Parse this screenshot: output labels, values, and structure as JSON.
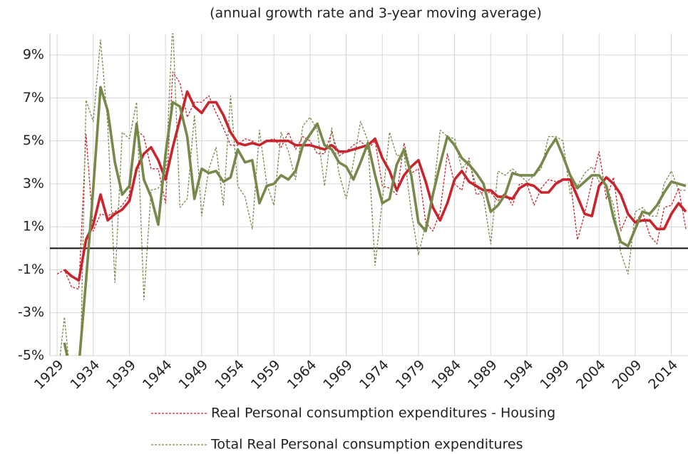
{
  "chart_data": {
    "type": "line",
    "title": "(annual growth rate and 3-year moving average)",
    "x": [
      1929,
      1930,
      1931,
      1932,
      1933,
      1934,
      1935,
      1936,
      1937,
      1938,
      1939,
      1940,
      1941,
      1942,
      1943,
      1944,
      1945,
      1946,
      1947,
      1948,
      1949,
      1950,
      1951,
      1952,
      1953,
      1954,
      1955,
      1956,
      1957,
      1958,
      1959,
      1960,
      1961,
      1962,
      1963,
      1964,
      1965,
      1966,
      1967,
      1968,
      1969,
      1970,
      1971,
      1972,
      1973,
      1974,
      1975,
      1976,
      1977,
      1978,
      1979,
      1980,
      1981,
      1982,
      1983,
      1984,
      1985,
      1986,
      1987,
      1988,
      1989,
      1990,
      1991,
      1992,
      1993,
      1994,
      1995,
      1996,
      1997,
      1998,
      1999,
      2000,
      2001,
      2002,
      2003,
      2004,
      2005,
      2006,
      2007,
      2008,
      2009,
      2010,
      2011,
      2012,
      2013,
      2014,
      2015,
      2016
    ],
    "series": [
      {
        "name": "Real Personal consumption expenditures - Housing",
        "color": "#c8242b",
        "style": "dashed",
        "values": [
          -1.2,
          -1.0,
          -1.8,
          -1.9,
          5.3,
          0.8,
          1.6,
          1.5,
          1.7,
          2.0,
          2.5,
          5.5,
          5.2,
          3.7,
          3.7,
          2.1,
          8.2,
          7.7,
          6.1,
          6.8,
          6.8,
          7.1,
          6.3,
          5.6,
          4.8,
          4.8,
          5.1,
          5.0,
          4.8,
          5.0,
          5.1,
          4.7,
          5.4,
          4.6,
          5.2,
          5.0,
          4.4,
          4.4,
          5.4,
          4.3,
          4.5,
          4.8,
          5.0,
          4.6,
          5.0,
          2.9,
          2.8,
          2.5,
          4.9,
          3.5,
          3.7,
          1.2,
          0.8,
          1.7,
          4.4,
          3.0,
          2.7,
          4.2,
          2.5,
          2.6,
          2.6,
          2.2,
          2.6,
          2.0,
          3.0,
          3.0,
          2.0,
          2.8,
          3.2,
          3.1,
          3.2,
          3.2,
          0.4,
          1.6,
          3.1,
          4.5,
          2.3,
          3.3,
          0.8,
          1.6,
          1.2,
          1.7,
          0.6,
          0.2,
          1.9,
          2.0,
          2.8,
          0.9
        ]
      },
      {
        "name": "Total Real Personal consumption expenditures",
        "color": "#76894a",
        "style": "dashed",
        "values": [
          -6.3,
          -3.2,
          -6.5,
          -9.0,
          6.9,
          5.9,
          9.7,
          5.8,
          -1.6,
          5.4,
          5.1,
          6.8,
          -2.4,
          2.7,
          2.8,
          3.3,
          10.5,
          1.9,
          2.3,
          6.2,
          1.5,
          3.7,
          4.7,
          2.0,
          7.1,
          2.9,
          2.4,
          0.9,
          5.5,
          3.0,
          2.0,
          5.4,
          4.5,
          3.2,
          5.7,
          6.1,
          5.5,
          2.9,
          5.6,
          3.5,
          2.3,
          4.0,
          5.9,
          5.0,
          -0.8,
          2.2,
          5.4,
          4.3,
          4.4,
          1.7,
          -0.3,
          1.1,
          2.3,
          5.5,
          5.2,
          5.1,
          3.7,
          4.1,
          2.9,
          2.4,
          0.2,
          3.6,
          3.4,
          3.7,
          3.4,
          3.1,
          3.4,
          3.7,
          5.2,
          5.2,
          5.0,
          2.5,
          2.9,
          3.5,
          3.8,
          3.1,
          2.9,
          2.0,
          -0.2,
          -1.2,
          1.7,
          1.9,
          1.5,
          1.5,
          3.0,
          3.6,
          2.7,
          2.7
        ]
      },
      {
        "color": "#c8242b",
        "style": "solid",
        "values": [
          null,
          -1.0,
          -1.3,
          -1.5,
          0.4,
          1.1,
          2.5,
          1.3,
          1.6,
          1.8,
          2.2,
          3.7,
          4.4,
          4.7,
          4.1,
          3.2,
          4.7,
          6.0,
          7.3,
          6.6,
          6.3,
          6.8,
          6.8,
          6.2,
          5.4,
          4.9,
          4.8,
          4.9,
          4.8,
          5.0,
          5.0,
          5.0,
          5.0,
          4.8,
          4.8,
          4.8,
          4.7,
          4.6,
          4.8,
          4.5,
          4.5,
          4.6,
          4.7,
          4.8,
          5.1,
          4.2,
          3.6,
          2.7,
          3.4,
          3.8,
          4.1,
          3.1,
          1.9,
          1.3,
          2.1,
          3.2,
          3.6,
          3.1,
          2.9,
          2.7,
          2.7,
          2.4,
          2.4,
          2.3,
          2.8,
          3.0,
          2.9,
          2.6,
          2.6,
          3.0,
          3.2,
          3.2,
          2.4,
          1.6,
          1.5,
          2.9,
          3.3,
          3.0,
          2.5,
          1.6,
          1.2,
          1.3,
          1.3,
          0.9,
          0.9,
          1.6,
          2.1,
          1.7
        ]
      },
      {
        "color": "#76894a",
        "style": "solid",
        "values": [
          null,
          -4.4,
          -6.0,
          -5.5,
          -1.5,
          2.8,
          7.5,
          6.4,
          4.0,
          2.5,
          2.9,
          5.8,
          3.2,
          2.4,
          1.1,
          4.4,
          6.8,
          6.6,
          5.2,
          2.3,
          3.7,
          3.5,
          3.6,
          3.1,
          3.3,
          4.6,
          4.0,
          4.1,
          2.1,
          2.9,
          3.0,
          3.4,
          3.2,
          3.6,
          4.8,
          5.3,
          5.8,
          4.8,
          4.6,
          4.0,
          3.8,
          3.2,
          4.0,
          4.9,
          3.4,
          2.1,
          2.3,
          3.9,
          4.6,
          3.4,
          1.2,
          0.8,
          2.5,
          3.9,
          5.2,
          4.8,
          4.2,
          3.9,
          3.5,
          3.0,
          1.7,
          2.0,
          2.5,
          3.5,
          3.4,
          3.4,
          3.4,
          3.9,
          4.6,
          5.1,
          4.3,
          3.4,
          2.8,
          3.1,
          3.4,
          3.4,
          2.9,
          1.4,
          0.3,
          0.1,
          0.9,
          1.7,
          1.6,
          2.0,
          2.6,
          3.1,
          3.0,
          2.9
        ]
      }
    ],
    "xlim": [
      1928,
      2016.3
    ],
    "xticks": [
      1929,
      1934,
      1939,
      1944,
      1949,
      1954,
      1959,
      1964,
      1969,
      1974,
      1979,
      1984,
      1989,
      1994,
      1999,
      2004,
      2009,
      2014
    ],
    "ylim": [
      -5,
      10
    ],
    "yticks": [
      {
        "value": -5,
        "label": "-5%"
      },
      {
        "value": -3,
        "label": "-3%"
      },
      {
        "value": -1,
        "label": "-1%"
      },
      {
        "value": 1,
        "label": "1%"
      },
      {
        "value": 3,
        "label": "3%"
      },
      {
        "value": 5,
        "label": "5%"
      },
      {
        "value": 7,
        "label": "7%"
      },
      {
        "value": 9,
        "label": "9%"
      }
    ],
    "grid": true
  }
}
